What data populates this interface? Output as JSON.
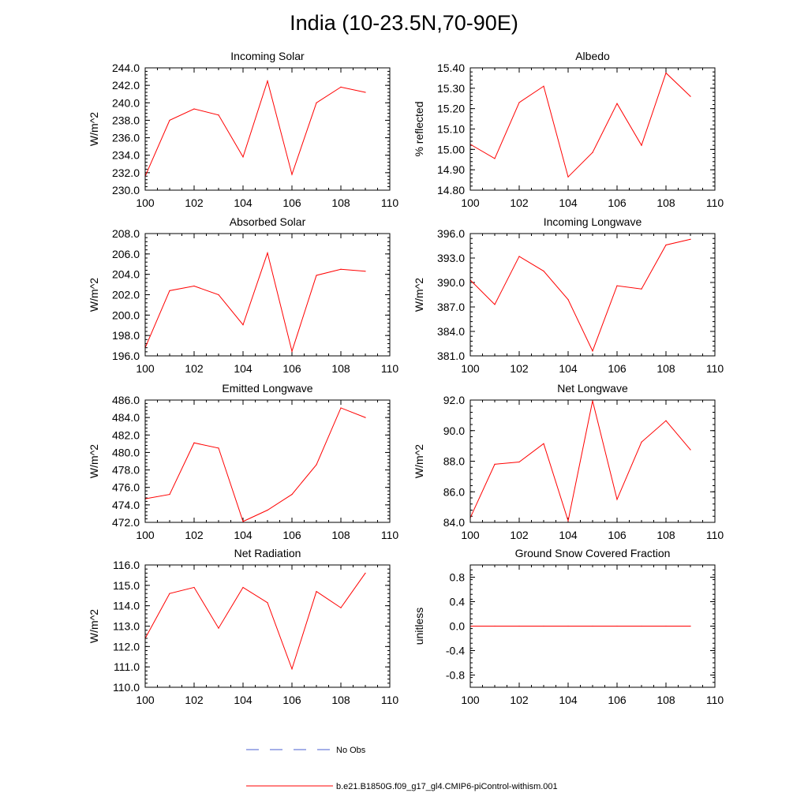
{
  "title": "India (10-23.5N,70-90E)",
  "colors": {
    "model": "#ff0000",
    "obs": "#4a5fd0",
    "axis": "#000000"
  },
  "legend": {
    "obs_label": "No Obs",
    "model_label": "b.e21.B1850G.f09_g17_gl4.CMIP6-piControl-withism.001"
  },
  "chart_data": [
    {
      "type": "line",
      "title": "Incoming Solar",
      "ylabel": "W/m^2",
      "xlim": [
        100,
        110
      ],
      "xticks": [
        "100",
        "102",
        "104",
        "106",
        "108",
        "110"
      ],
      "ylim": [
        230,
        244
      ],
      "yticks": [
        "230.0",
        "232.0",
        "234.0",
        "236.0",
        "238.0",
        "240.0",
        "242.0",
        "244.0"
      ],
      "x": [
        100,
        101,
        102,
        103,
        104,
        105,
        106,
        107,
        108,
        109
      ],
      "values": [
        231.6,
        238.0,
        239.3,
        238.6,
        233.8,
        242.5,
        231.8,
        240.0,
        241.8,
        241.2
      ]
    },
    {
      "type": "line",
      "title": "Albedo",
      "ylabel": "% reflected",
      "xlim": [
        100,
        110
      ],
      "xticks": [
        "100",
        "102",
        "104",
        "106",
        "108",
        "110"
      ],
      "ylim": [
        14.8,
        15.4
      ],
      "yticks": [
        "14.80",
        "14.90",
        "15.00",
        "15.10",
        "15.20",
        "15.30",
        "15.40"
      ],
      "x": [
        100,
        101,
        102,
        103,
        104,
        105,
        106,
        107,
        108,
        109
      ],
      "values": [
        15.025,
        14.955,
        15.23,
        15.31,
        14.865,
        14.985,
        15.225,
        15.02,
        15.375,
        15.26
      ]
    },
    {
      "type": "line",
      "title": "Absorbed Solar",
      "ylabel": "W/m^2",
      "xlim": [
        100,
        110
      ],
      "xticks": [
        "100",
        "102",
        "104",
        "106",
        "108",
        "110"
      ],
      "ylim": [
        196,
        208
      ],
      "yticks": [
        "196.0",
        "198.0",
        "200.0",
        "202.0",
        "204.0",
        "206.0",
        "208.0"
      ],
      "x": [
        100,
        101,
        102,
        103,
        104,
        105,
        106,
        107,
        108,
        109
      ],
      "values": [
        196.8,
        202.4,
        202.85,
        202.0,
        199.05,
        206.1,
        196.45,
        203.9,
        204.5,
        204.3
      ]
    },
    {
      "type": "line",
      "title": "Incoming Longwave",
      "ylabel": "W/m^2",
      "xlim": [
        100,
        110
      ],
      "xticks": [
        "100",
        "102",
        "104",
        "106",
        "108",
        "110"
      ],
      "ylim": [
        381,
        396
      ],
      "yticks": [
        "381.0",
        "384.0",
        "387.0",
        "390.0",
        "393.0",
        "396.0"
      ],
      "x": [
        100,
        101,
        102,
        103,
        104,
        105,
        106,
        107,
        108,
        109
      ],
      "values": [
        390.3,
        387.3,
        393.2,
        391.4,
        387.9,
        381.6,
        389.6,
        389.2,
        394.6,
        395.3
      ]
    },
    {
      "type": "line",
      "title": "Emitted Longwave",
      "ylabel": "W/m^2",
      "xlim": [
        100,
        110
      ],
      "xticks": [
        "100",
        "102",
        "104",
        "106",
        "108",
        "110"
      ],
      "ylim": [
        472,
        486
      ],
      "yticks": [
        "472.0",
        "474.0",
        "476.0",
        "478.0",
        "480.0",
        "482.0",
        "484.0",
        "486.0"
      ],
      "x": [
        100,
        101,
        102,
        103,
        104,
        105,
        106,
        107,
        108,
        109
      ],
      "values": [
        474.7,
        475.2,
        481.1,
        480.5,
        472.1,
        473.4,
        475.2,
        478.6,
        485.1,
        484.0
      ]
    },
    {
      "type": "line",
      "title": "Net Longwave",
      "ylabel": "W/m^2",
      "xlim": [
        100,
        110
      ],
      "xticks": [
        "100",
        "102",
        "104",
        "106",
        "108",
        "110"
      ],
      "ylim": [
        84,
        92
      ],
      "yticks": [
        "84.0",
        "86.0",
        "88.0",
        "90.0",
        "92.0"
      ],
      "x": [
        100,
        101,
        102,
        103,
        104,
        105,
        106,
        107,
        108,
        109
      ],
      "values": [
        84.3,
        87.8,
        87.95,
        89.15,
        84.1,
        91.95,
        85.5,
        89.25,
        90.65,
        88.75
      ]
    },
    {
      "type": "line",
      "title": "Net Radiation",
      "ylabel": "W/m^2",
      "xlim": [
        100,
        110
      ],
      "xticks": [
        "100",
        "102",
        "104",
        "106",
        "108",
        "110"
      ],
      "ylim": [
        110,
        116
      ],
      "yticks": [
        "110.0",
        "111.0",
        "112.0",
        "113.0",
        "114.0",
        "115.0",
        "116.0"
      ],
      "x": [
        100,
        101,
        102,
        103,
        104,
        105,
        106,
        107,
        108,
        109
      ],
      "values": [
        112.4,
        114.6,
        114.9,
        112.9,
        114.9,
        114.15,
        110.9,
        114.7,
        113.9,
        115.6
      ]
    },
    {
      "type": "line",
      "title": "Ground Snow Covered Fraction",
      "ylabel": "unitless",
      "xlim": [
        100,
        110
      ],
      "xticks": [
        "100",
        "102",
        "104",
        "106",
        "108",
        "110"
      ],
      "ylim": [
        -1.0,
        1.0
      ],
      "yticks": [
        "-0.8",
        "-0.4",
        "0.0",
        "0.4",
        "0.8"
      ],
      "ytick_values": [
        -0.8,
        -0.4,
        0.0,
        0.4,
        0.8
      ],
      "x": [
        100,
        101,
        102,
        103,
        104,
        105,
        106,
        107,
        108,
        109
      ],
      "values": [
        0,
        0,
        0,
        0,
        0,
        0,
        0,
        0,
        0,
        0
      ]
    }
  ]
}
